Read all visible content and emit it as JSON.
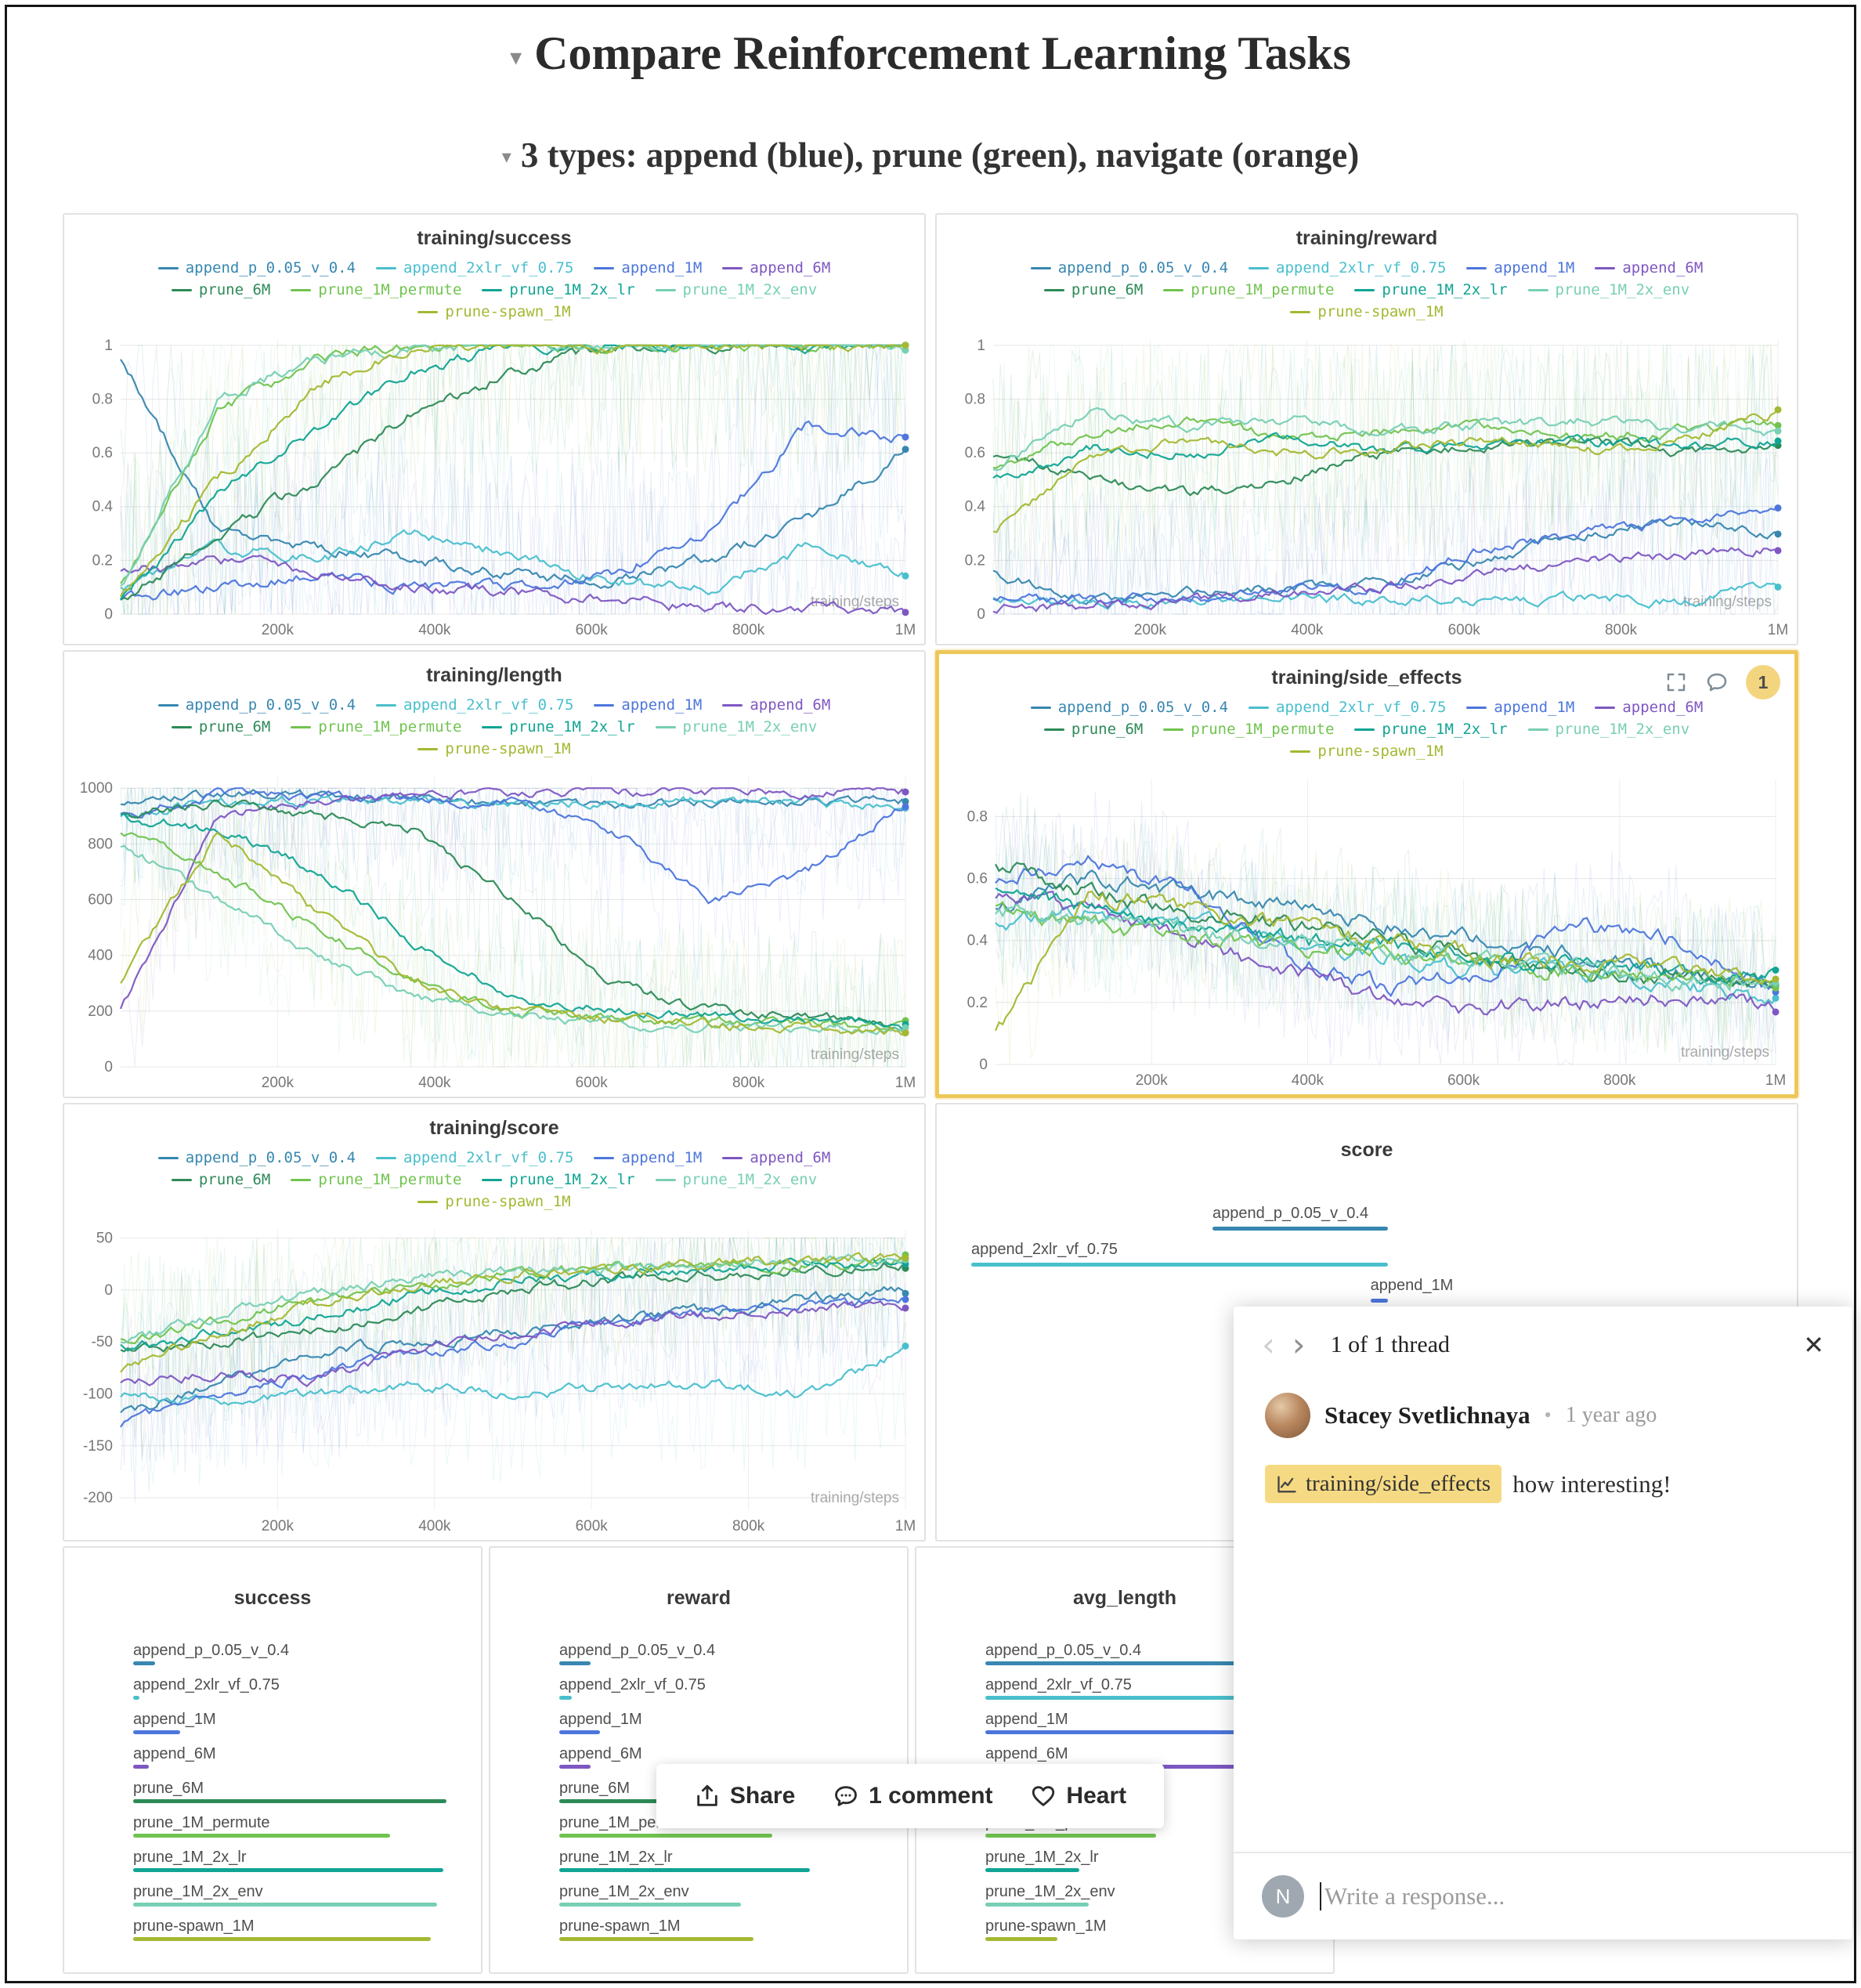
{
  "page": {
    "title": "Compare Reinforcement Learning Tasks",
    "subtitle": "3 types: append (blue), prune (green), navigate (orange)"
  },
  "runs": [
    {
      "name": "append_p_0.05_v_0.4",
      "color": "#3787b0"
    },
    {
      "name": "append_2xlr_vf_0.75",
      "color": "#49bfcd"
    },
    {
      "name": "append_1M",
      "color": "#4d76dc"
    },
    {
      "name": "append_6M",
      "color": "#7e57c2"
    },
    {
      "name": "prune_6M",
      "color": "#2d8a57"
    },
    {
      "name": "prune_1M_permute",
      "color": "#71c34f"
    },
    {
      "name": "prune_1M_2x_lr",
      "color": "#11a494"
    },
    {
      "name": "prune_1M_2x_env",
      "color": "#77cfb4"
    },
    {
      "name": "prune-spawn_1M",
      "color": "#a4b832"
    }
  ],
  "axis": {
    "labels": [
      "200k",
      "400k",
      "600k",
      "800k",
      "1M"
    ],
    "fractions": [
      0.2,
      0.4,
      0.6,
      0.8,
      1
    ],
    "inner_label": "training/steps"
  },
  "side_effects_panel": {
    "badge_count": "1"
  },
  "toolbar": {
    "share": "Share",
    "comments": "1 comment",
    "heart": "Heart"
  },
  "thread": {
    "pager": "1 of 1 thread",
    "author": "Stacey Svetlichnaya",
    "time": "1 year ago",
    "chip": "training/side_effects",
    "comment_rest": "how interesting!",
    "reply_placeholder": "Write a response...",
    "reply_avatar_initial": "N"
  },
  "chart_data": [
    {
      "type": "line",
      "title": "training/success",
      "ylim": [
        0,
        1.02
      ],
      "clamp": [
        0,
        1
      ],
      "y_ticks": [
        1,
        0.8,
        0.6,
        0.4,
        0.2,
        0
      ],
      "raw_noise": 0.48,
      "line_noise": 0.05,
      "series": [
        {
          "run": 0,
          "values": [
            0.95,
            0.3,
            0.25,
            0.2,
            0.15,
            0.12,
            0.2,
            0.35,
            0.6
          ]
        },
        {
          "run": 1,
          "values": [
            0.1,
            0.25,
            0.2,
            0.3,
            0.22,
            0.12,
            0.1,
            0.25,
            0.15
          ]
        },
        {
          "run": 2,
          "values": [
            0.05,
            0.1,
            0.15,
            0.1,
            0.1,
            0.15,
            0.3,
            0.7,
            0.65
          ]
        },
        {
          "run": 3,
          "values": [
            0.15,
            0.2,
            0.15,
            0.1,
            0.08,
            0.05,
            0.03,
            0.02,
            0.01
          ]
        },
        {
          "run": 4,
          "values": [
            0.05,
            0.3,
            0.5,
            0.75,
            0.9,
            1,
            1,
            1,
            1
          ]
        },
        {
          "run": 5,
          "values": [
            0.1,
            0.75,
            0.95,
            1,
            1,
            1,
            1,
            1,
            1
          ]
        },
        {
          "run": 6,
          "values": [
            0.05,
            0.45,
            0.7,
            0.9,
            1,
            1,
            1,
            1,
            1
          ]
        },
        {
          "run": 7,
          "values": [
            0.1,
            0.8,
            0.95,
            1,
            1,
            1,
            1,
            1,
            1
          ]
        },
        {
          "run": 8,
          "values": [
            0.05,
            0.5,
            0.85,
            1,
            1,
            1,
            1,
            1,
            1
          ]
        }
      ]
    },
    {
      "type": "line",
      "title": "training/reward",
      "ylim": [
        0,
        1.02
      ],
      "clamp": [
        0,
        1
      ],
      "y_ticks": [
        1,
        0.8,
        0.6,
        0.4,
        0.2,
        0
      ],
      "raw_noise": 0.42,
      "line_noise": 0.045,
      "series": [
        {
          "run": 0,
          "values": [
            0.15,
            0.05,
            0.08,
            0.1,
            0.12,
            0.2,
            0.3,
            0.35,
            0.3
          ]
        },
        {
          "run": 1,
          "values": [
            0.05,
            0.04,
            0.05,
            0.06,
            0.05,
            0.05,
            0.06,
            0.05,
            0.1
          ]
        },
        {
          "run": 2,
          "values": [
            0.05,
            0.05,
            0.06,
            0.08,
            0.1,
            0.25,
            0.3,
            0.35,
            0.4
          ]
        },
        {
          "run": 3,
          "values": [
            0.02,
            0.03,
            0.05,
            0.08,
            0.1,
            0.15,
            0.2,
            0.22,
            0.25
          ]
        },
        {
          "run": 4,
          "values": [
            0.6,
            0.5,
            0.45,
            0.5,
            0.6,
            0.62,
            0.65,
            0.6,
            0.62
          ]
        },
        {
          "run": 5,
          "values": [
            0.55,
            0.68,
            0.72,
            0.65,
            0.68,
            0.7,
            0.65,
            0.68,
            0.72
          ]
        },
        {
          "run": 6,
          "values": [
            0.5,
            0.62,
            0.6,
            0.65,
            0.6,
            0.63,
            0.65,
            0.62,
            0.65
          ]
        },
        {
          "run": 7,
          "values": [
            0.55,
            0.75,
            0.7,
            0.72,
            0.68,
            0.7,
            0.72,
            0.7,
            0.68
          ]
        },
        {
          "run": 8,
          "values": [
            0.3,
            0.6,
            0.65,
            0.6,
            0.62,
            0.65,
            0.6,
            0.65,
            0.75
          ]
        }
      ]
    },
    {
      "type": "line",
      "title": "training/length",
      "ylim": [
        0,
        1040
      ],
      "clamp": [
        0,
        1000
      ],
      "y_ticks": [
        1000,
        800,
        600,
        400,
        200,
        0
      ],
      "raw_noise": 0.32,
      "line_noise": 0.04,
      "series": [
        {
          "run": 0,
          "values": [
            950,
            980,
            970,
            960,
            950,
            940,
            950,
            960,
            950
          ]
        },
        {
          "run": 1,
          "values": [
            900,
            950,
            960,
            950,
            940,
            950,
            960,
            950,
            940
          ]
        },
        {
          "run": 2,
          "values": [
            900,
            980,
            970,
            960,
            950,
            850,
            600,
            700,
            950
          ]
        },
        {
          "run": 3,
          "values": [
            200,
            900,
            950,
            970,
            980,
            990,
            990,
            990,
            990
          ]
        },
        {
          "run": 4,
          "values": [
            900,
            950,
            900,
            850,
            600,
            300,
            200,
            180,
            150
          ]
        },
        {
          "run": 5,
          "values": [
            850,
            700,
            500,
            300,
            200,
            180,
            160,
            150,
            140
          ]
        },
        {
          "run": 6,
          "values": [
            900,
            850,
            700,
            450,
            250,
            200,
            180,
            160,
            150
          ]
        },
        {
          "run": 7,
          "values": [
            800,
            600,
            400,
            250,
            180,
            160,
            150,
            140,
            130
          ]
        },
        {
          "run": 8,
          "values": [
            300,
            850,
            550,
            300,
            200,
            170,
            150,
            140,
            130
          ]
        }
      ]
    },
    {
      "type": "line",
      "title": "training/side_effects",
      "ylim": [
        0,
        0.92
      ],
      "clamp": [
        0,
        0.88
      ],
      "y_ticks": [
        0.8,
        0.6,
        0.4,
        0.2,
        0
      ],
      "raw_noise": 0.28,
      "line_noise": 0.07,
      "series": [
        {
          "run": 0,
          "values": [
            0.5,
            0.6,
            0.55,
            0.5,
            0.45,
            0.4,
            0.35,
            0.3,
            0.25
          ]
        },
        {
          "run": 1,
          "values": [
            0.45,
            0.5,
            0.45,
            0.4,
            0.35,
            0.3,
            0.3,
            0.25,
            0.2
          ]
        },
        {
          "run": 2,
          "values": [
            0.6,
            0.65,
            0.55,
            0.35,
            0.25,
            0.3,
            0.45,
            0.4,
            0.25
          ]
        },
        {
          "run": 3,
          "values": [
            0.55,
            0.5,
            0.4,
            0.3,
            0.2,
            0.18,
            0.2,
            0.22,
            0.2
          ]
        },
        {
          "run": 4,
          "values": [
            0.65,
            0.55,
            0.5,
            0.45,
            0.4,
            0.35,
            0.3,
            0.28,
            0.25
          ]
        },
        {
          "run": 5,
          "values": [
            0.5,
            0.45,
            0.4,
            0.38,
            0.35,
            0.32,
            0.3,
            0.28,
            0.27
          ]
        },
        {
          "run": 6,
          "values": [
            0.55,
            0.5,
            0.45,
            0.4,
            0.38,
            0.35,
            0.32,
            0.3,
            0.28
          ]
        },
        {
          "run": 7,
          "values": [
            0.5,
            0.45,
            0.42,
            0.4,
            0.36,
            0.33,
            0.3,
            0.28,
            0.26
          ]
        },
        {
          "run": 8,
          "values": [
            0.1,
            0.55,
            0.5,
            0.45,
            0.4,
            0.35,
            0.32,
            0.3,
            0.28
          ]
        }
      ]
    },
    {
      "type": "line",
      "title": "training/score",
      "ylim": [
        -212,
        58
      ],
      "clamp": [
        -205,
        50
      ],
      "y_ticks": [
        50,
        0,
        -50,
        -100,
        -150,
        -200
      ],
      "raw_noise": 0.32,
      "line_noise": 0.045,
      "series": [
        {
          "run": 0,
          "values": [
            -120,
            -90,
            -60,
            -50,
            -40,
            -30,
            -20,
            -10,
            0
          ]
        },
        {
          "run": 1,
          "values": [
            -100,
            -110,
            -100,
            -90,
            -100,
            -95,
            -90,
            -100,
            -60
          ]
        },
        {
          "run": 2,
          "values": [
            -130,
            -100,
            -80,
            -60,
            -50,
            -30,
            -20,
            -15,
            -10
          ]
        },
        {
          "run": 3,
          "values": [
            -90,
            -80,
            -85,
            -60,
            -40,
            -30,
            -25,
            -20,
            -15
          ]
        },
        {
          "run": 4,
          "values": [
            -60,
            -50,
            -40,
            -20,
            0,
            10,
            15,
            20,
            25
          ]
        },
        {
          "run": 5,
          "values": [
            -50,
            -30,
            -10,
            5,
            15,
            20,
            25,
            25,
            30
          ]
        },
        {
          "run": 6,
          "values": [
            -55,
            -40,
            -25,
            -5,
            10,
            15,
            20,
            25,
            25
          ]
        },
        {
          "run": 7,
          "values": [
            -50,
            -25,
            -5,
            10,
            18,
            22,
            25,
            28,
            30
          ]
        },
        {
          "run": 8,
          "values": [
            -80,
            -40,
            -15,
            5,
            15,
            20,
            25,
            28,
            32
          ]
        }
      ]
    },
    {
      "type": "bar",
      "title": "score",
      "align": "right",
      "range": 200,
      "bars": [
        {
          "run": 0,
          "value": -40
        },
        {
          "run": 1,
          "value": -95
        },
        {
          "run": 2,
          "value": -4
        }
      ]
    },
    {
      "type": "bar",
      "title": "success",
      "max": 1,
      "bars": [
        {
          "run": 0,
          "value": 0.07
        },
        {
          "run": 1,
          "value": 0.02
        },
        {
          "run": 2,
          "value": 0.15
        },
        {
          "run": 3,
          "value": 0.05
        },
        {
          "run": 4,
          "value": 1.0
        },
        {
          "run": 5,
          "value": 0.82
        },
        {
          "run": 6,
          "value": 0.99
        },
        {
          "run": 7,
          "value": 0.97
        },
        {
          "run": 8,
          "value": 0.95
        }
      ]
    },
    {
      "type": "bar",
      "title": "reward",
      "max": 1,
      "bars": [
        {
          "run": 0,
          "value": 0.1
        },
        {
          "run": 1,
          "value": 0.04
        },
        {
          "run": 2,
          "value": 0.13
        },
        {
          "run": 3,
          "value": 0.1
        },
        {
          "run": 4,
          "value": 0.55
        },
        {
          "run": 5,
          "value": 0.68
        },
        {
          "run": 6,
          "value": 0.8
        },
        {
          "run": 7,
          "value": 0.58
        },
        {
          "run": 8,
          "value": 0.62
        }
      ]
    },
    {
      "type": "bar",
      "title": "avg_length",
      "max": 1000,
      "bars": [
        {
          "run": 0,
          "value": 997
        },
        {
          "run": 1,
          "value": 940
        },
        {
          "run": 2,
          "value": 860
        },
        {
          "run": 3,
          "value": 985
        },
        {
          "run": 4,
          "value": 210
        },
        {
          "run": 5,
          "value": 545
        },
        {
          "run": 6,
          "value": 300
        },
        {
          "run": 7,
          "value": 330
        },
        {
          "run": 8,
          "value": 230
        }
      ]
    }
  ]
}
